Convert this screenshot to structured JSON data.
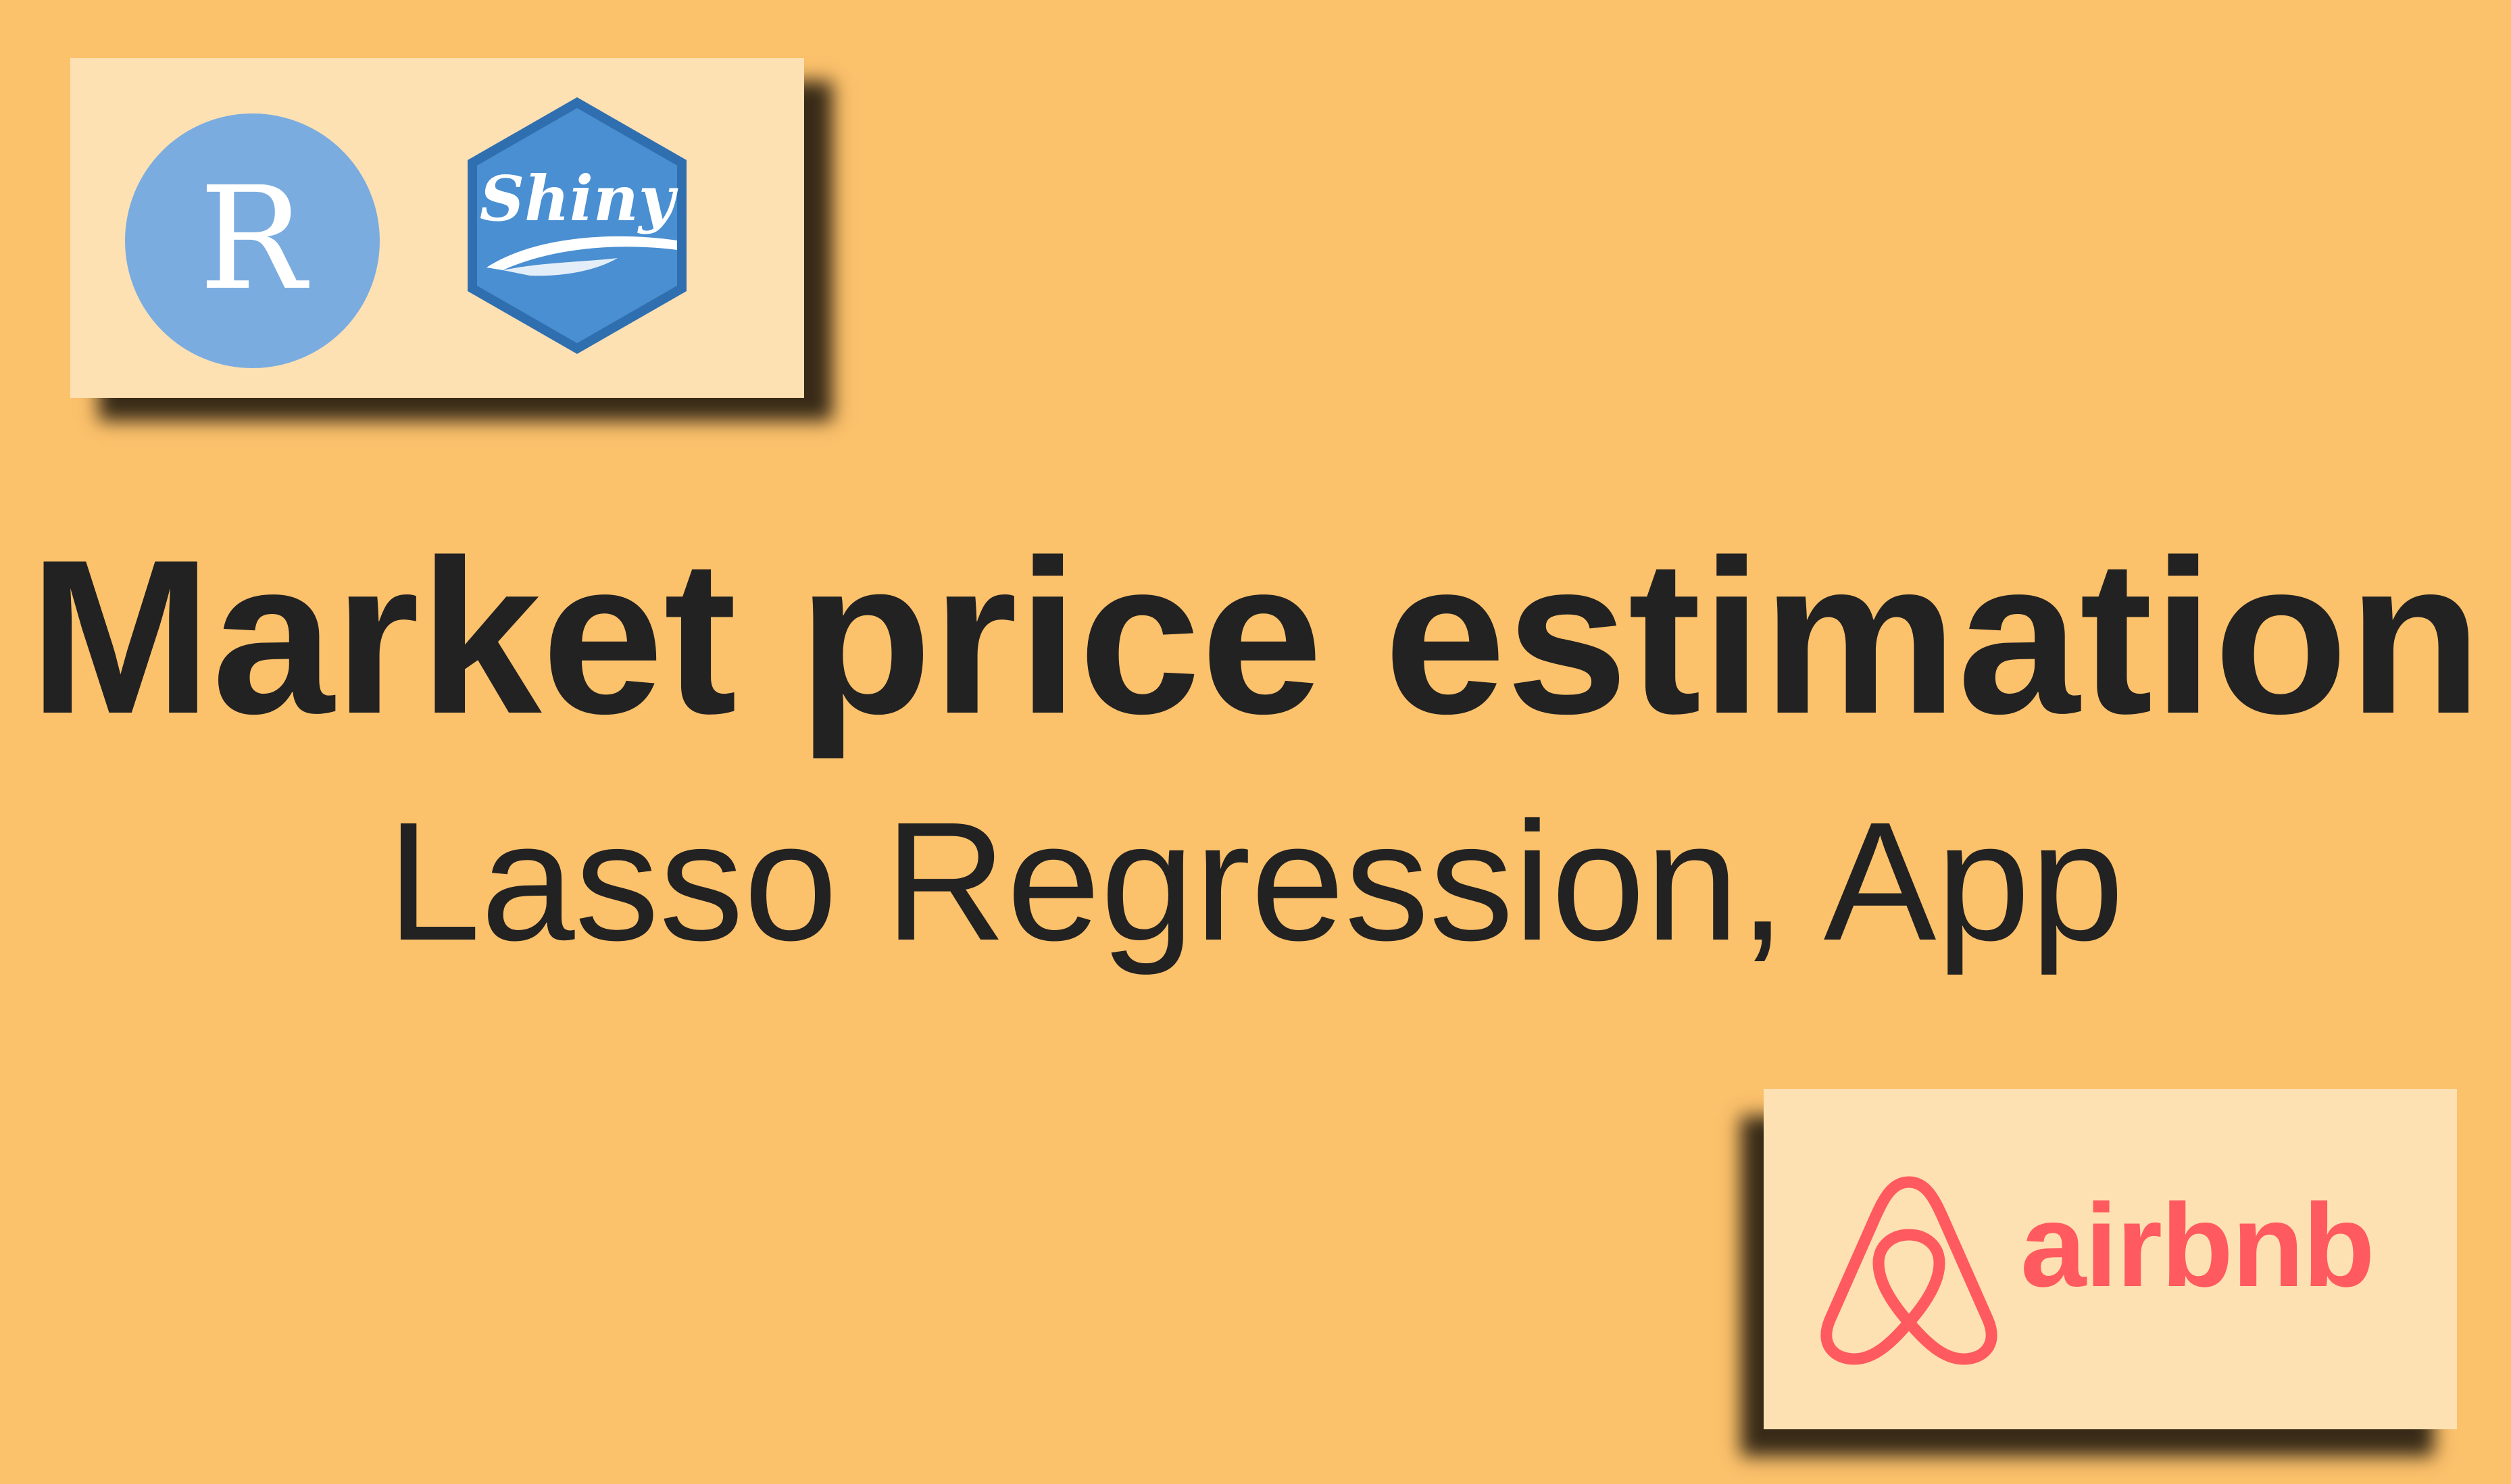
{
  "headline": {
    "title": "Market price estimation",
    "subtitle": "Lasso Regression, App"
  },
  "logos": {
    "r": {
      "letter": "R",
      "icon": "r-logo-icon",
      "color": "#7aace0"
    },
    "shiny": {
      "word": "Shiny",
      "icon": "shiny-hex-icon",
      "color": "#4185c8"
    },
    "airbnb": {
      "word": "airbnb",
      "icon": "airbnb-belo-icon",
      "color": "#ff5a5f"
    }
  },
  "colors": {
    "background": "#fcc16b",
    "card": "#fee1b3",
    "text": "#222222"
  }
}
